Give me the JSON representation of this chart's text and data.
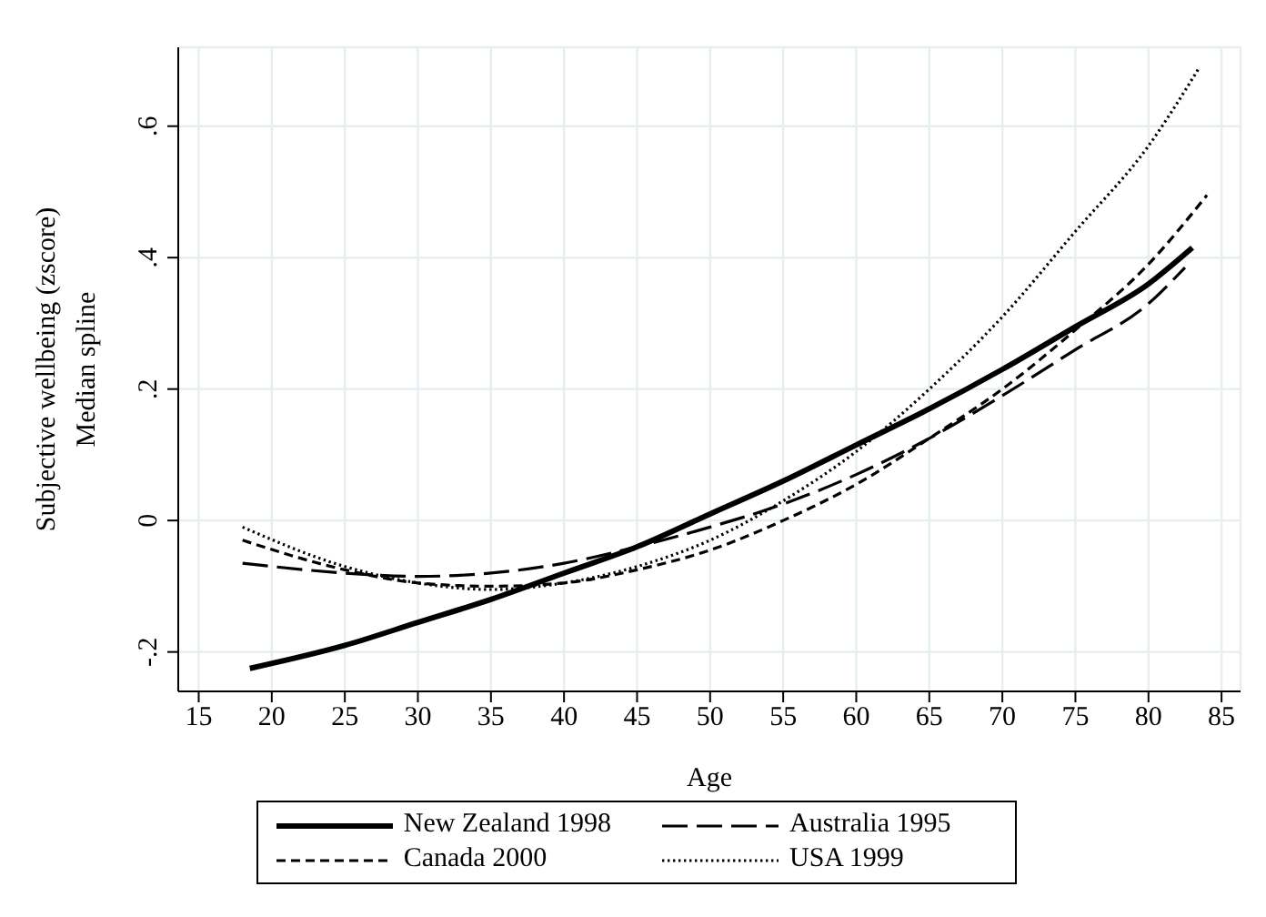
{
  "chart_data": {
    "type": "line",
    "xlabel": "Age",
    "ylabel": "Subjective wellbeing (zscore)\nMedian spline",
    "xlim": [
      13.6,
      86.3
    ],
    "xticks": [
      15,
      20,
      25,
      30,
      35,
      40,
      45,
      50,
      55,
      60,
      65,
      70,
      75,
      80,
      85
    ],
    "ylim": [
      -0.26,
      0.72
    ],
    "yticks": [
      {
        "value": -0.2,
        "label": "-.2"
      },
      {
        "value": 0,
        "label": "0"
      },
      {
        "value": 0.2,
        "label": ".2"
      },
      {
        "value": 0.4,
        "label": ".4"
      },
      {
        "value": 0.6,
        "label": ".6"
      }
    ],
    "grid": true,
    "legend": "bottom",
    "marker": "none",
    "series": [
      {
        "name": "New Zealand 1998",
        "color": "#000000",
        "line_style": "solid",
        "x": [
          18.5,
          25,
          30,
          35,
          40,
          45,
          50,
          55,
          60,
          65,
          70,
          75,
          80,
          83
        ],
        "values": [
          -0.225,
          -0.19,
          -0.155,
          -0.12,
          -0.08,
          -0.04,
          0.01,
          0.06,
          0.115,
          0.17,
          0.23,
          0.295,
          0.36,
          0.415
        ]
      },
      {
        "name": "Australia 1995",
        "color": "#000000",
        "line_style": "dashed",
        "x": [
          18,
          25,
          30,
          35,
          40,
          45,
          50,
          55,
          60,
          65,
          70,
          75,
          80,
          82.5
        ],
        "values": [
          -0.065,
          -0.08,
          -0.085,
          -0.08,
          -0.065,
          -0.04,
          -0.01,
          0.025,
          0.07,
          0.125,
          0.19,
          0.26,
          0.33,
          0.385
        ]
      },
      {
        "name": "Canada 2000",
        "color": "#000000",
        "line_style": "dashed",
        "x": [
          18,
          25,
          30,
          35,
          40,
          45,
          50,
          55,
          60,
          65,
          70,
          75,
          80,
          84
        ],
        "values": [
          -0.03,
          -0.075,
          -0.095,
          -0.1,
          -0.095,
          -0.075,
          -0.045,
          0.0,
          0.055,
          0.125,
          0.2,
          0.29,
          0.39,
          0.495
        ]
      },
      {
        "name": "USA 1999",
        "color": "#000000",
        "line_style": "dotted",
        "x": [
          18,
          25,
          30,
          35,
          40,
          45,
          50,
          55,
          60,
          65,
          70,
          75,
          80,
          83.5
        ],
        "values": [
          -0.01,
          -0.07,
          -0.095,
          -0.105,
          -0.095,
          -0.07,
          -0.03,
          0.03,
          0.105,
          0.2,
          0.31,
          0.44,
          0.57,
          0.69
        ]
      }
    ]
  }
}
